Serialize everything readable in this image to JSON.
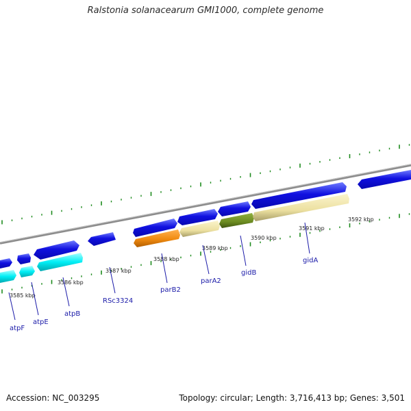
{
  "title": "Ralstonia solanacearum GMI1000, complete genome",
  "footer": {
    "accession": "Accession: NC_003295",
    "summary": "Topology: circular; Length: 3,716,413 bp; Genes: 3,501"
  },
  "colors": {
    "forward_gene": "#1010e0",
    "forward_gene_light": "#6f7cff",
    "atp_gene": "#00e8f0",
    "orange_gene": "#f08a10",
    "cream_gene": "#efe3a0",
    "olive_gene": "#6b8a20",
    "axis": "#8c8c8c",
    "tick": "#1d8a1d",
    "label": "#1a1aa8"
  },
  "scale_ticks": [
    "3585 kbp",
    "3586 kbp",
    "3587 kbp",
    "3588 kbp",
    "3589 kbp",
    "3590 kbp",
    "3591 kbp",
    "3592 kbp"
  ],
  "gene_labels": [
    "atpF",
    "atpE",
    "atpB",
    "RSc3324",
    "parB2",
    "parA2",
    "gidB",
    "gidA"
  ]
}
